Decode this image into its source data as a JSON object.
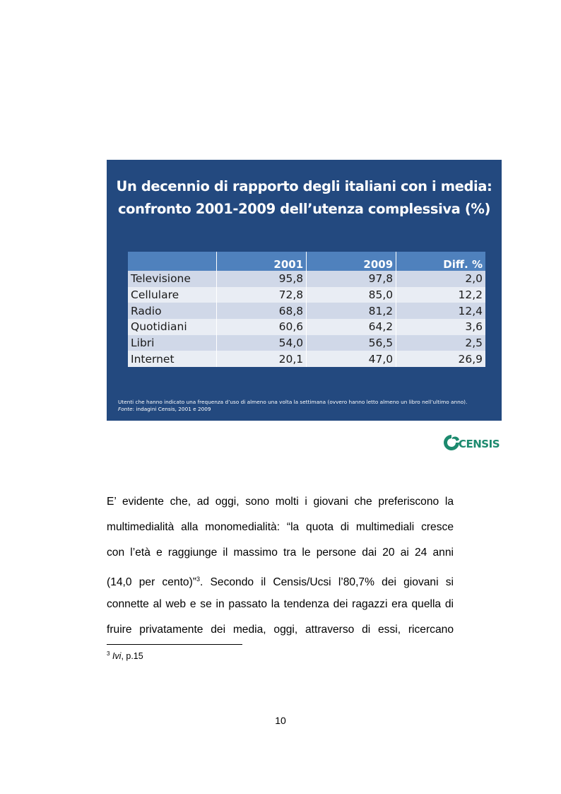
{
  "figure": {
    "title_line1": "Un decennio di rapporto degli italiani con i media:",
    "title_line2": "confronto 2001-2009 dell’utenza complessiva (%)",
    "table": {
      "headers": [
        "",
        "2001",
        "2009",
        "Diff. %"
      ],
      "rows": [
        [
          "Televisione",
          "95,8",
          "97,8",
          "2,0"
        ],
        [
          "Cellulare",
          "72,8",
          "85,0",
          "12,2"
        ],
        [
          "Radio",
          "68,8",
          "81,2",
          "12,4"
        ],
        [
          "Quotidiani",
          "60,6",
          "64,2",
          "3,6"
        ],
        [
          "Libri",
          "54,0",
          "56,5",
          "2,5"
        ],
        [
          "Internet",
          "20,1",
          "47,0",
          "26,9"
        ]
      ]
    },
    "note_line": "Utenti che hanno indicato una frequenza d’uso di almeno una volta la settimana (ovvero hanno letto almeno un libro nell’ultimo anno).",
    "source_label": "Fonte",
    "source_text": ": indagini Censis, 2001 e 2009",
    "colors": {
      "background": "#23497f",
      "header": "#4f81bd",
      "row_odd": "#d0d8e8",
      "row_even": "#e9edf4"
    }
  },
  "logo": {
    "text": "CENSIS",
    "color": "#1c8a6e"
  },
  "body": {
    "lines": [
      "E’ evidente che, ad oggi, sono molti i giovani che preferiscono la",
      "multimedialità alla monomedialità: “la quota di multimediali cresce",
      "con l’età e raggiunge il massimo tra le persone dai 20 ai 24 anni",
      "connette al web e se in passato la tendenza dei ragazzi era quella di",
      "fruire privatamente dei media, oggi, attraverso di essi, ricercano"
    ],
    "line4_part1": "(14,0 per cento)”",
    "line4_ref": "3",
    "line4_part2": ". Secondo il Censis/Ucsi l’80,7% dei giovani si"
  },
  "footnote": {
    "number": "3",
    "ref": "Ivi",
    "text": ", p.15"
  },
  "page_number": "10"
}
